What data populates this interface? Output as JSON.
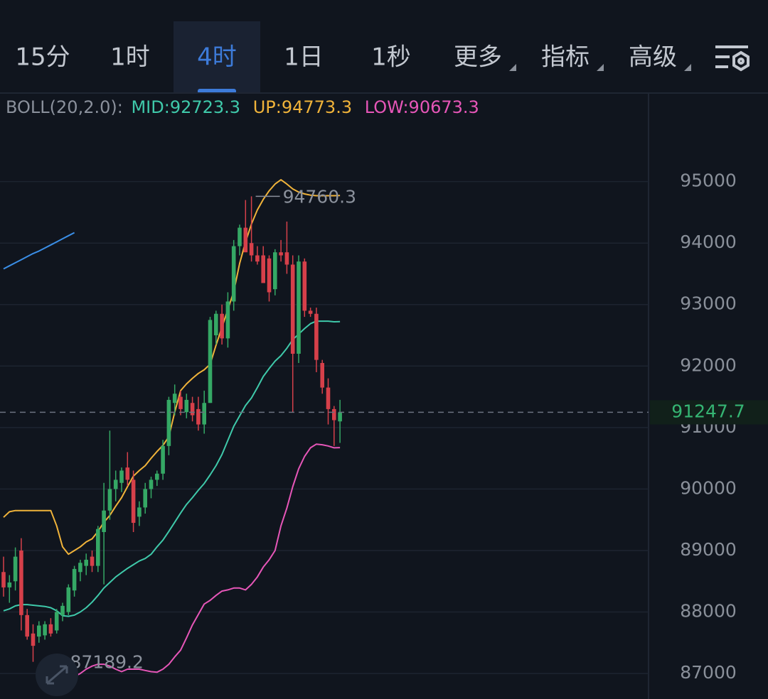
{
  "tabs": [
    "15分",
    "1时",
    "4时",
    "1日",
    "1秒",
    "更多",
    "指标",
    "高级"
  ],
  "selected_tab": 2,
  "chart_data": {
    "type": "candlestick",
    "indicator_label": "BOLL(20,2.0):",
    "up_color": "#35a865",
    "down_color": "#d6404a",
    "open": [
      88650,
      88400,
      88500,
      89000,
      87950,
      87650,
      87600,
      87620,
      87800,
      87700,
      87950,
      88000,
      88350,
      88650,
      88750,
      88900,
      88750,
      89300,
      89650,
      90000,
      90100,
      90350,
      90150,
      89550,
      89700,
      90000,
      90150,
      90250,
      90700,
      91400,
      91500,
      91250,
      91400,
      91300,
      91050,
      91400,
      92500,
      92850,
      92450,
      93050,
      93950,
      94250,
      94000,
      93800,
      93800,
      93750,
      93250,
      93850,
      93850,
      93650,
      92200,
      93700,
      92900,
      92850,
      92050,
      91650,
      91300,
      91100
    ],
    "high": [
      88900,
      88600,
      89050,
      89200,
      88050,
      87800,
      87850,
      87850,
      87900,
      88050,
      88150,
      88450,
      88750,
      88850,
      88950,
      89000,
      89400,
      90100,
      90950,
      90300,
      90350,
      90600,
      90300,
      89800,
      90100,
      90200,
      90300,
      90800,
      91500,
      91700,
      91600,
      91550,
      91500,
      91500,
      91600,
      92800,
      92900,
      93000,
      93200,
      94050,
      94300,
      94700,
      94760.3,
      93950,
      93950,
      93800,
      93900,
      94050,
      94350,
      93800,
      93800,
      93750,
      92950,
      92950,
      92100,
      91800,
      91350,
      91450
    ],
    "low": [
      88250,
      88150,
      88350,
      87700,
      87550,
      87189.2,
      87500,
      87550,
      87600,
      87650,
      87850,
      87950,
      88250,
      88500,
      88600,
      88650,
      88650,
      88450,
      89500,
      89800,
      89950,
      90050,
      89300,
      89400,
      89600,
      89850,
      90050,
      90150,
      90550,
      91200,
      91200,
      91150,
      91100,
      90950,
      90900,
      91400,
      92350,
      92350,
      92300,
      92900,
      93800,
      93900,
      93700,
      93650,
      93400,
      93050,
      93150,
      93700,
      93500,
      91250,
      92050,
      92800,
      92800,
      91900,
      91550,
      91050,
      90700,
      90750
    ],
    "close": [
      88400,
      88480,
      88900,
      87950,
      87600,
      87450,
      87780,
      87800,
      87650,
      88000,
      88100,
      88400,
      88700,
      88800,
      88850,
      88750,
      89350,
      89650,
      90000,
      90150,
      90300,
      90150,
      89450,
      89700,
      90000,
      90150,
      90250,
      90700,
      91450,
      91550,
      91300,
      91450,
      91200,
      91050,
      91400,
      92750,
      92850,
      92450,
      93050,
      93950,
      94250,
      93850,
      93800,
      93700,
      93350,
      93200,
      93850,
      93800,
      93650,
      92200,
      93700,
      92900,
      92850,
      92100,
      91650,
      91300,
      91120,
      91247.7
    ],
    "series": [
      {
        "name": "MID:92723.3",
        "color": "#3fc9aa",
        "values": [
          88020,
          88050,
          88100,
          88120,
          88120,
          88110,
          88100,
          88090,
          88070,
          88020,
          87940,
          87930,
          87950,
          88000,
          88070,
          88160,
          88270,
          88390,
          88480,
          88570,
          88640,
          88710,
          88770,
          88830,
          88870,
          88940,
          89060,
          89170,
          89310,
          89460,
          89610,
          89750,
          89860,
          89980,
          90090,
          90230,
          90380,
          90560,
          90790,
          91020,
          91190,
          91360,
          91480,
          91650,
          91830,
          91960,
          92080,
          92170,
          92290,
          92430,
          92520,
          92610,
          92690,
          92730,
          92730,
          92730,
          92720,
          92723.3
        ]
      },
      {
        "name": "UP:94773.3",
        "color": "#f0b33a",
        "values": [
          89540,
          89630,
          89650,
          89650,
          89650,
          89650,
          89650,
          89650,
          89650,
          89400,
          89060,
          88940,
          89000,
          89060,
          89140,
          89190,
          89310,
          89460,
          89570,
          89720,
          89860,
          90040,
          90210,
          90300,
          90380,
          90500,
          90610,
          90710,
          90850,
          91250,
          91600,
          91710,
          91800,
          91880,
          91940,
          92030,
          92340,
          92630,
          92920,
          93210,
          93670,
          94020,
          94310,
          94540,
          94710,
          94850,
          94960,
          95030,
          94960,
          94880,
          94830,
          94800,
          94780,
          94770,
          94770,
          94770,
          94770,
          94773.3
        ]
      },
      {
        "name": "LOW:90673.3",
        "color": "#e656b8",
        "values": [
          null,
          null,
          null,
          null,
          null,
          null,
          null,
          null,
          86650,
          86750,
          86840,
          86920,
          86950,
          87000,
          87070,
          87120,
          87150,
          87150,
          87120,
          87070,
          87030,
          87070,
          87070,
          87070,
          87050,
          87030,
          87020,
          87070,
          87150,
          87270,
          87380,
          87580,
          87790,
          87960,
          88130,
          88190,
          88270,
          88340,
          88360,
          88390,
          88390,
          88360,
          88450,
          88570,
          88730,
          88850,
          89000,
          89400,
          89690,
          90040,
          90330,
          90530,
          90670,
          90730,
          90720,
          90700,
          90670,
          90673.3
        ]
      }
    ],
    "extra_line": {
      "color": "#3a8ee6",
      "values": [
        93580,
        93630,
        93680,
        93730,
        93780,
        93830,
        93870,
        93920,
        93970,
        94020,
        94070,
        94120,
        94170,
        null,
        null,
        null,
        null,
        null,
        null,
        null,
        null,
        null,
        null,
        null,
        null,
        null,
        null,
        null,
        null,
        null,
        null,
        null,
        null,
        null,
        null,
        null,
        null,
        null,
        null,
        null,
        null,
        null,
        null,
        null,
        null,
        null,
        null,
        null,
        null,
        null,
        null,
        null,
        null,
        null,
        null,
        null,
        null,
        null
      ]
    },
    "max_label": "94760.3",
    "min_label": "87189.2",
    "last_label": "91247.7",
    "ylim": [
      86585,
      96440
    ],
    "yticks": [
      87000,
      88000,
      89000,
      90000,
      91000,
      92000,
      93000,
      94000,
      95000
    ],
    "grid": true
  }
}
